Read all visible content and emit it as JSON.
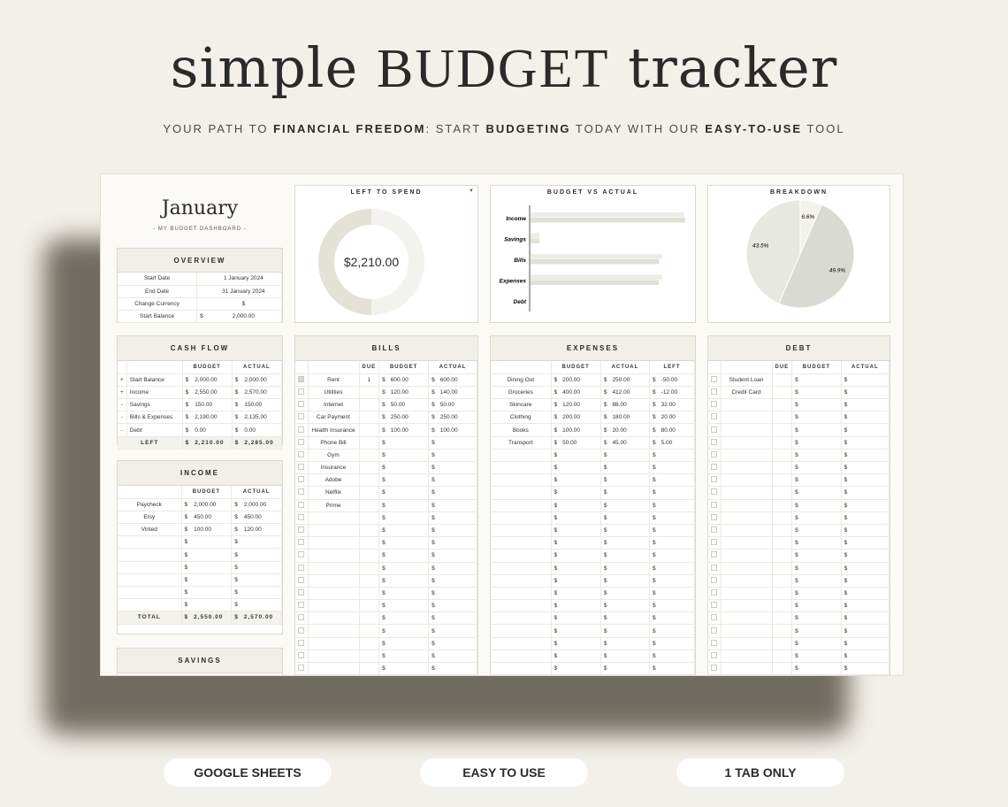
{
  "hero": {
    "title_a": "simple ",
    "title_b": "BUDGET",
    "title_c": " tracker",
    "sub_a": "YOUR PATH TO ",
    "sub_b": "FINANCIAL FREEDOM",
    "sub_c": ": START ",
    "sub_d": "BUDGETING",
    "sub_e": " TODAY WITH OUR ",
    "sub_f": "EASY-TO-USE",
    "sub_g": " TOOL"
  },
  "dashboard": {
    "month": "January",
    "subtitle": "- MY BUDGET DASHBOARD -"
  },
  "overview": {
    "title": "OVERVIEW",
    "rows": [
      {
        "label": "Start Date",
        "cur": "",
        "value": "1 January 2024"
      },
      {
        "label": "End Date",
        "cur": "",
        "value": "31 January 2024"
      },
      {
        "label": "Change Currency",
        "cur": "",
        "value": "$"
      },
      {
        "label": "Start Balance",
        "cur": "$",
        "value": "2,000.00"
      }
    ]
  },
  "left_to_spend": {
    "title": "LEFT TO SPEND",
    "amount": "$2,210.00",
    "fraction": 0.5,
    "spent_color": "#e4e1d6",
    "left_color": "#f3f2ee"
  },
  "budget_vs_actual": {
    "title": "BUDGET VS ACTUAL",
    "chart_data": {
      "type": "bar",
      "orientation": "horizontal",
      "categories": [
        "Income",
        "Savings",
        "Bills",
        "Expenses",
        "Debt"
      ],
      "series": [
        {
          "values": [
            2550,
            150,
            2190,
            2190,
            0
          ],
          "color": "#eeece6"
        },
        {
          "values": [
            2570,
            150,
            2135,
            2135,
            0
          ],
          "color": "#e2dfd3"
        }
      ],
      "xlim": [
        0,
        3000
      ]
    }
  },
  "breakdown": {
    "title": "BREAKDOWN",
    "chart_data": {
      "type": "pie",
      "labels": [
        "6.6%",
        "49.9%",
        "43.5%"
      ],
      "values": [
        6.6,
        49.9,
        43.5
      ],
      "colors": [
        "#f4f2ec",
        "#d9dbd3",
        "#e6e8e1"
      ]
    }
  },
  "cash_flow": {
    "title": "CASH FLOW",
    "headers": [
      "",
      "",
      "BUDGET",
      "ACTUAL"
    ],
    "rows": [
      {
        "sign": "+",
        "label": "Start Balance",
        "budget": "2,000.00",
        "actual": "2,000.00"
      },
      {
        "sign": "+",
        "label": "Income",
        "budget": "2,550.00",
        "actual": "2,570.00"
      },
      {
        "sign": "-",
        "label": "Savings",
        "budget": "150.00",
        "actual": "150.00"
      },
      {
        "sign": "-",
        "label": "Bills & Expenses",
        "budget": "2,190.00",
        "actual": "2,135.00"
      },
      {
        "sign": "-",
        "label": "Debt",
        "budget": "0.00",
        "actual": "0.00"
      }
    ],
    "total": {
      "label": "LEFT",
      "budget": "2,210.00",
      "actual": "2,285.00"
    }
  },
  "income": {
    "title": "INCOME",
    "headers": [
      "",
      "BUDGET",
      "ACTUAL"
    ],
    "rows": [
      {
        "label": "Paycheck",
        "budget": "2,000.00",
        "actual": "2,000.00"
      },
      {
        "label": "Etsy",
        "budget": "450.00",
        "actual": "450.00"
      },
      {
        "label": "Vinted",
        "budget": "100.00",
        "actual": "120.00"
      },
      {
        "label": "",
        "budget": "",
        "actual": ""
      },
      {
        "label": "",
        "budget": "",
        "actual": ""
      },
      {
        "label": "",
        "budget": "",
        "actual": ""
      },
      {
        "label": "",
        "budget": "",
        "actual": ""
      },
      {
        "label": "",
        "budget": "",
        "actual": ""
      },
      {
        "label": "",
        "budget": "",
        "actual": ""
      }
    ],
    "total": {
      "label": "TOTAL",
      "budget": "2,550.00",
      "actual": "2,570.00"
    }
  },
  "savings": {
    "title": "SAVINGS"
  },
  "bills": {
    "title": "BILLS",
    "headers": [
      "",
      "",
      "DUE",
      "BUDGET",
      "ACTUAL"
    ],
    "rows": [
      {
        "checked": true,
        "label": "Rent",
        "due": "1",
        "budget": "600.00",
        "actual": "600.00"
      },
      {
        "checked": false,
        "label": "Utilities",
        "due": "",
        "budget": "120.00",
        "actual": "140.00"
      },
      {
        "checked": false,
        "label": "Internet",
        "due": "",
        "budget": "50.00",
        "actual": "50.00"
      },
      {
        "checked": false,
        "label": "Car Payment",
        "due": "",
        "budget": "250.00",
        "actual": "250.00"
      },
      {
        "checked": false,
        "label": "Health Insurance",
        "due": "",
        "budget": "100.00",
        "actual": "100.00"
      },
      {
        "checked": false,
        "label": "Phone Bill",
        "due": "",
        "budget": "",
        "actual": ""
      },
      {
        "checked": false,
        "label": "Gym",
        "due": "",
        "budget": "",
        "actual": ""
      },
      {
        "checked": false,
        "label": "Insurance",
        "due": "",
        "budget": "",
        "actual": ""
      },
      {
        "checked": false,
        "label": "Adobe",
        "due": "",
        "budget": "",
        "actual": ""
      },
      {
        "checked": false,
        "label": "Netflix",
        "due": "",
        "budget": "",
        "actual": ""
      },
      {
        "checked": false,
        "label": "Prime",
        "due": "",
        "budget": "",
        "actual": ""
      }
    ],
    "empty_rows": 14
  },
  "expenses": {
    "title": "EXPENSES",
    "headers": [
      "",
      "BUDGET",
      "ACTUAL",
      "LEFT"
    ],
    "rows": [
      {
        "label": "Dining Out",
        "budget": "200.00",
        "actual": "250.00",
        "left": "-50.00"
      },
      {
        "label": "Groceries",
        "budget": "400.00",
        "actual": "412.00",
        "left": "-12.00"
      },
      {
        "label": "Skincare",
        "budget": "120.00",
        "actual": "88.00",
        "left": "32.00"
      },
      {
        "label": "Clothing",
        "budget": "200.00",
        "actual": "180.00",
        "left": "20.00"
      },
      {
        "label": "Books",
        "budget": "100.00",
        "actual": "20.00",
        "left": "80.00"
      },
      {
        "label": "Transport",
        "budget": "50.00",
        "actual": "45.00",
        "left": "5.00"
      }
    ],
    "empty_rows": 19
  },
  "debt": {
    "title": "DEBT",
    "headers": [
      "",
      "",
      "DUE",
      "BUDGET",
      "ACTUAL"
    ],
    "rows": [
      {
        "label": "Student Loan"
      },
      {
        "label": "Credit Card"
      }
    ],
    "empty_rows": 23
  },
  "badges": [
    "GOOGLE SHEETS",
    "EASY TO USE",
    "1 TAB ONLY"
  ]
}
